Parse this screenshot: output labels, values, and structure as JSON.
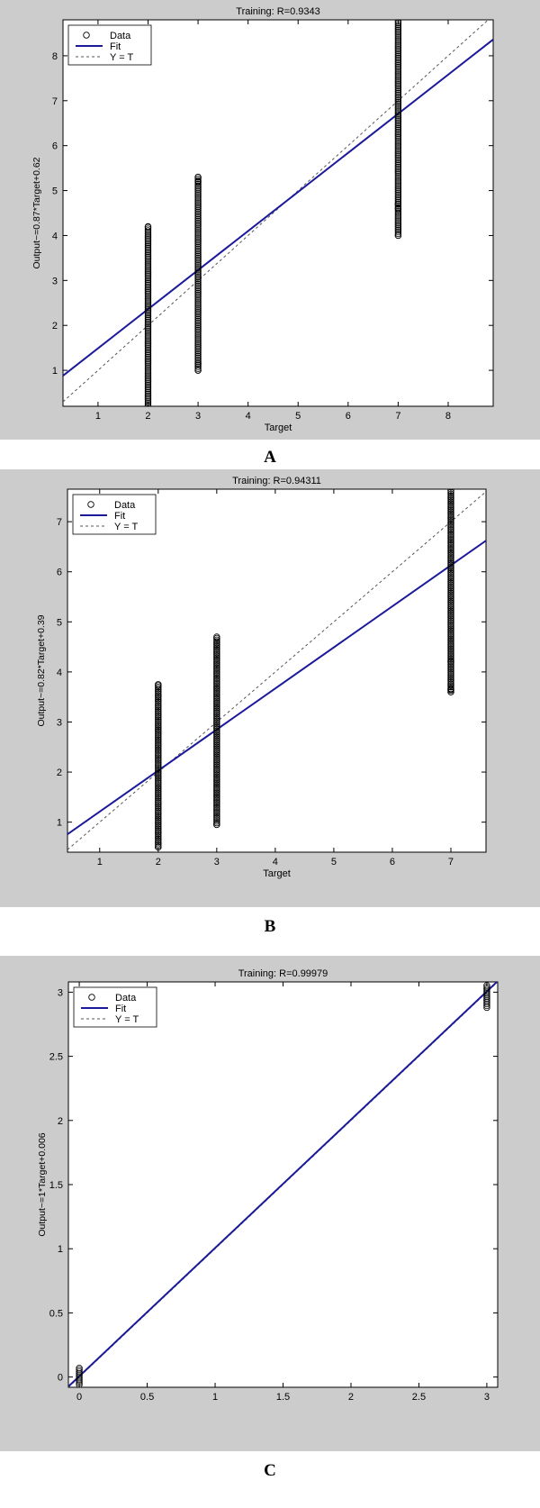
{
  "chart_data": [
    {
      "type": "scatter",
      "title": "Training: R=0.9343",
      "xlabel": "Target",
      "ylabel": "Output~=0.87*Target+0.62",
      "xlim": [
        0.3,
        8.9
      ],
      "ylim": [
        0.2,
        8.8
      ],
      "xticks": [
        1,
        2,
        3,
        4,
        5,
        6,
        7,
        8
      ],
      "yticks": [
        1,
        2,
        3,
        4,
        5,
        6,
        7,
        8
      ],
      "grid": false,
      "legend": {
        "position": "top-left",
        "entries": [
          "Data",
          "Fit",
          "Y = T"
        ]
      },
      "fit": {
        "slope": 0.87,
        "intercept": 0.62
      },
      "series": [
        {
          "x": 2,
          "ymin": 0.2,
          "ymax": 4.2,
          "outliers": [
            4.2,
            0.2
          ]
        },
        {
          "x": 3,
          "ymin": 1.0,
          "ymax": 5.3,
          "outliers": [
            5.3,
            5.2,
            1.0,
            1.15
          ]
        },
        {
          "x": 7,
          "ymin": 4.0,
          "ymax": 8.8,
          "outliers": [
            4.0,
            4.6,
            4.7
          ]
        }
      ]
    },
    {
      "type": "scatter",
      "title": "Training: R=0.94311",
      "xlabel": "Target",
      "ylabel": "Output~=0.82*Target+0.39",
      "xlim": [
        0.45,
        7.6
      ],
      "ylim": [
        0.4,
        7.65
      ],
      "xticks": [
        1,
        2,
        3,
        4,
        5,
        6,
        7
      ],
      "yticks": [
        1,
        2,
        3,
        4,
        5,
        6,
        7
      ],
      "grid": false,
      "legend": {
        "position": "top-left",
        "entries": [
          "Data",
          "Fit",
          "Y = T"
        ]
      },
      "fit": {
        "slope": 0.82,
        "intercept": 0.39
      },
      "series": [
        {
          "x": 2,
          "ymin": 0.5,
          "ymax": 3.75,
          "outliers": [
            3.75,
            0.5
          ]
        },
        {
          "x": 3,
          "ymin": 0.95,
          "ymax": 4.7,
          "outliers": [
            4.7,
            0.95
          ]
        },
        {
          "x": 7,
          "ymin": 3.6,
          "ymax": 7.65,
          "outliers": [
            3.6,
            3.65,
            4.2
          ]
        }
      ]
    },
    {
      "type": "scatter",
      "title": "Training: R=0.99979",
      "xlabel": "",
      "ylabel": "Output~=1*Target+0.006",
      "xlim": [
        -0.08,
        3.08
      ],
      "ylim": [
        -0.08,
        3.08
      ],
      "xticks": [
        0,
        0.5,
        1,
        1.5,
        2,
        2.5,
        3
      ],
      "yticks": [
        0,
        0.5,
        1,
        1.5,
        2,
        2.5,
        3
      ],
      "grid": false,
      "legend": {
        "position": "top-left",
        "entries": [
          "Data",
          "Fit",
          "Y = T"
        ]
      },
      "fit": {
        "slope": 1,
        "intercept": 0.006
      },
      "series": [
        {
          "x": 0,
          "ymin": -0.06,
          "ymax": 0.08,
          "outliers": []
        },
        {
          "x": 3,
          "ymin": 2.88,
          "ymax": 3.06,
          "outliers": []
        }
      ]
    }
  ],
  "captions": [
    "A",
    "B",
    "C"
  ],
  "colors": {
    "figure_bg": "#cccccc",
    "axes_bg": "#ffffff",
    "fit": "#1a1a9a",
    "identity": "#555555",
    "marker": "#000000"
  }
}
